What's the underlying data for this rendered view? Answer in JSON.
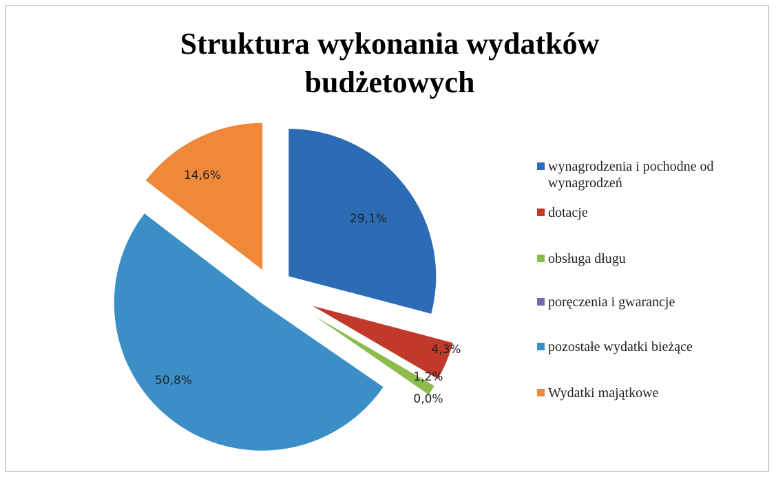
{
  "chart_data": {
    "type": "pie",
    "title": "Struktura wykonania wydatków budżetowych",
    "categories": [
      "wynagrodzenia i pochodne od wynagrodzeń",
      "dotacje",
      "obsługa długu",
      "poręczenia i gwarancje",
      "pozostałe wydatki bieżące",
      "Wydatki majątkowe"
    ],
    "values": [
      29.1,
      4.3,
      1.2,
      0.0,
      50.8,
      14.6
    ],
    "value_labels": [
      "29,1%",
      "4,3%",
      "1,2%",
      "0,0%",
      "50,8%",
      "14,6%"
    ],
    "colors": [
      "#2c6cb5",
      "#c0392b",
      "#8cbc4c",
      "#7a67b0",
      "#3b8fc6",
      "#f0883a"
    ],
    "legend": "right"
  }
}
